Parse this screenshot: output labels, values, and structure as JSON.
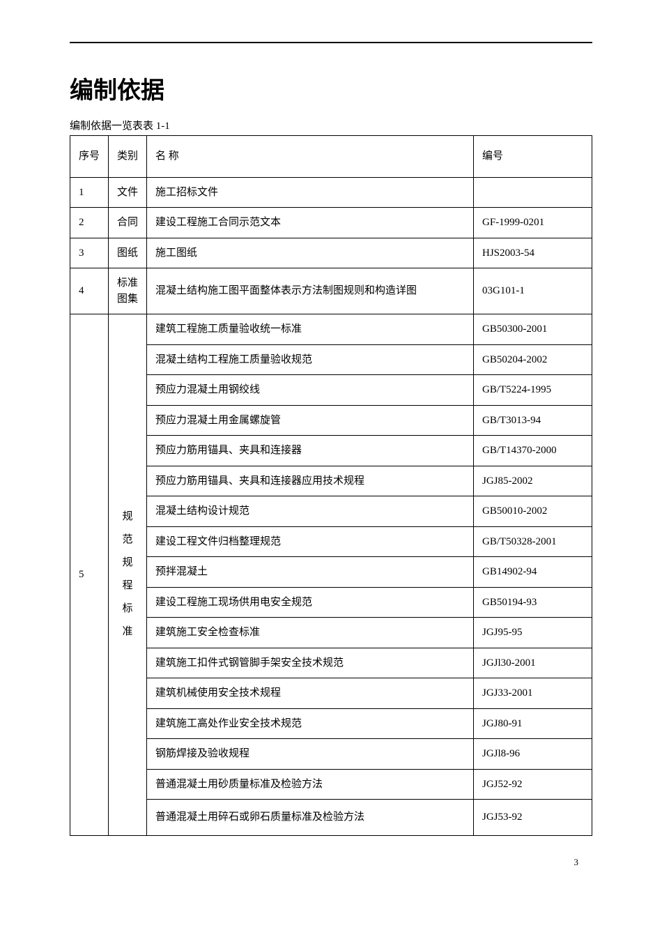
{
  "page": {
    "title": "编制依据",
    "table_caption": "编制依据一览表表 1-1",
    "page_number": "3"
  },
  "headers": {
    "seq": "序号",
    "category": "类别",
    "name": "名 称",
    "code": "编号"
  },
  "rows_simple": [
    {
      "seq": "1",
      "cat": "文件",
      "name": "施工招标文件",
      "code": ""
    },
    {
      "seq": "2",
      "cat": "合同",
      "name": "建设工程施工合同示范文本",
      "code": "GF-1999-0201"
    },
    {
      "seq": "3",
      "cat": "图纸",
      "name": "施工图纸",
      "code": "HJS2003-54"
    },
    {
      "seq": "4",
      "cat": "标准\n图集",
      "name": "混凝土结构施工图平面整体表示方法制图规则和构造详图",
      "code": "03G101-1"
    }
  ],
  "group5": {
    "seq": "5",
    "cat": "规\n范\n规\n程\n标\n准",
    "items": [
      {
        "name": "建筑工程施工质量验收统一标准",
        "code": "GB50300-2001"
      },
      {
        "name": "混凝土结构工程施工质量验收规范",
        "code": "GB50204-2002"
      },
      {
        "name": "预应力混凝土用钢绞线",
        "code": "GB/T5224-1995"
      },
      {
        "name": "预应力混凝土用金属螺旋管",
        "code": "GB/T3013-94"
      },
      {
        "name": "预应力筋用锚具、夹具和连接器",
        "code": "GB/T14370-2000"
      },
      {
        "name": "预应力筋用锚具、夹具和连接器应用技术规程",
        "code": "JGJ85-2002"
      },
      {
        "name": "混凝土结构设计规范",
        "code": "GB50010-2002"
      },
      {
        "name": "建设工程文件归档整理规范",
        "code": "GB/T50328-2001"
      },
      {
        "name": "预拌混凝土",
        "code": "GB14902-94"
      },
      {
        "name": "建设工程施工现场供用电安全规范",
        "code": "GB50194-93"
      },
      {
        "name": "建筑施工安全检查标准",
        "code": "JGJ95-95"
      },
      {
        "name": "建筑施工扣件式钢管脚手架安全技术规范",
        "code": "JGJl30-2001"
      },
      {
        "name": "建筑机械使用安全技术规程",
        "code": "JGJ33-2001"
      },
      {
        "name": "建筑施工高处作业安全技术规范",
        "code": "JGJ80-91"
      },
      {
        "name": "钢筋焊接及验收规程",
        "code": "JGJl8-96"
      },
      {
        "name": "普通混凝土用砂质量标准及检验方法",
        "code": "JGJ52-92"
      },
      {
        "name": "普通混凝土用碎石或卵石质量标准及检验方法",
        "code": "JGJ53-92"
      }
    ]
  }
}
